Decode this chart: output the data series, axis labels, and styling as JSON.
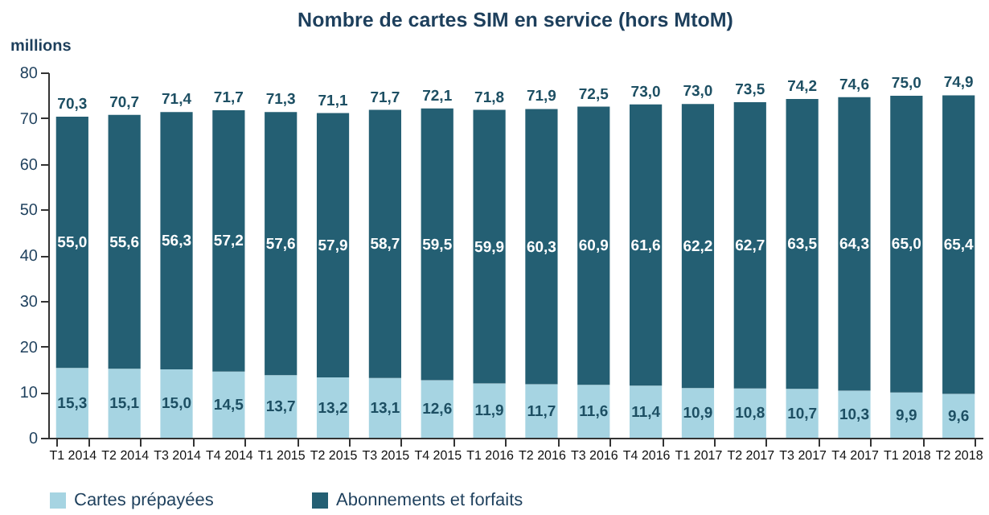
{
  "chart_data": {
    "type": "bar",
    "title": "Nombre de cartes SIM en service (hors MtoM)",
    "ylabel": "millions",
    "categories": [
      "T1 2014",
      "T2 2014",
      "T3 2014",
      "T4 2014",
      "T1 2015",
      "T2 2015",
      "T3 2015",
      "T4 2015",
      "T1 2016",
      "T2 2016",
      "T3 2016",
      "T4 2016",
      "T1 2017",
      "T2 2017",
      "T3 2017",
      "T4 2017",
      "T1 2018",
      "T2 2018"
    ],
    "series": [
      {
        "name": "Cartes prépayées",
        "color": "#a6d4e2",
        "values": [
          15.3,
          15.1,
          15.0,
          14.5,
          13.7,
          13.2,
          13.1,
          12.6,
          11.9,
          11.7,
          11.6,
          11.4,
          10.9,
          10.8,
          10.7,
          10.3,
          9.9,
          9.6
        ],
        "value_labels": [
          "15,3",
          "15,1",
          "15,0",
          "14,5",
          "13,7",
          "13,2",
          "13,1",
          "12,6",
          "11,9",
          "11,7",
          "11,6",
          "11,4",
          "10,9",
          "10,8",
          "10,7",
          "10,3",
          "9,9",
          "9,6"
        ]
      },
      {
        "name": "Abonnements et forfaits",
        "color": "#245f73",
        "values": [
          55.0,
          55.6,
          56.3,
          57.2,
          57.6,
          57.9,
          58.7,
          59.5,
          59.9,
          60.3,
          60.9,
          61.6,
          62.2,
          62.7,
          63.5,
          64.3,
          65.0,
          65.4
        ],
        "value_labels": [
          "55,0",
          "55,6",
          "56,3",
          "57,2",
          "57,6",
          "57,9",
          "58,7",
          "59,5",
          "59,9",
          "60,3",
          "60,9",
          "61,6",
          "62,2",
          "62,7",
          "63,5",
          "64,3",
          "65,0",
          "65,4"
        ]
      }
    ],
    "stacked": true,
    "totals": [
      "70,3",
      "70,7",
      "71,4",
      "71,7",
      "71,3",
      "71,1",
      "71,7",
      "72,1",
      "71,8",
      "71,9",
      "72,5",
      "73,0",
      "73,0",
      "73,5",
      "74,2",
      "74,6",
      "75,0",
      "74,9"
    ],
    "ylim": [
      0,
      80
    ],
    "yticks": [
      0,
      10,
      20,
      30,
      40,
      50,
      60,
      70,
      80
    ],
    "grid": false,
    "legend": "bottom"
  }
}
